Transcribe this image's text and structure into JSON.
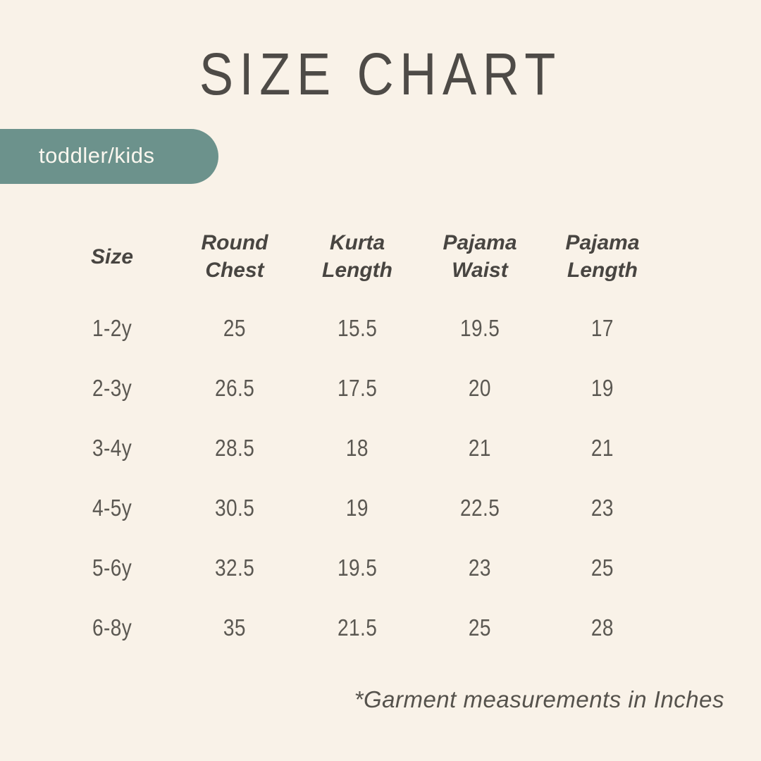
{
  "header": {
    "title": "SIZE CHART",
    "category_label": "toddler/kids"
  },
  "footer": {
    "note": "*Garment measurements in Inches"
  },
  "colors": {
    "background": "#F9F2E8",
    "badge": "#6C928C",
    "badge_text": "#FAF7EF",
    "title_text": "#4E4B47",
    "header_text": "#484541",
    "data_text": "#5B5852",
    "footnote_text": "#55524C"
  },
  "chart_data": {
    "type": "table",
    "title": "SIZE CHART",
    "category": "toddler/kids",
    "unit_note": "*Garment measurements in Inches",
    "units": "Inches",
    "columns": [
      "Size",
      "Round Chest",
      "Kurta Length",
      "Pajama Waist",
      "Pajama Length"
    ],
    "rows": [
      [
        "1-2y",
        "25",
        "15.5",
        "19.5",
        "17"
      ],
      [
        "2-3y",
        "26.5",
        "17.5",
        "20",
        "19"
      ],
      [
        "3-4y",
        "28.5",
        "18",
        "21",
        "21"
      ],
      [
        "4-5y",
        "30.5",
        "19",
        "22.5",
        "23"
      ],
      [
        "5-6y",
        "32.5",
        "19.5",
        "23",
        "25"
      ],
      [
        "6-8y",
        "35",
        "21.5",
        "25",
        "28"
      ]
    ]
  }
}
